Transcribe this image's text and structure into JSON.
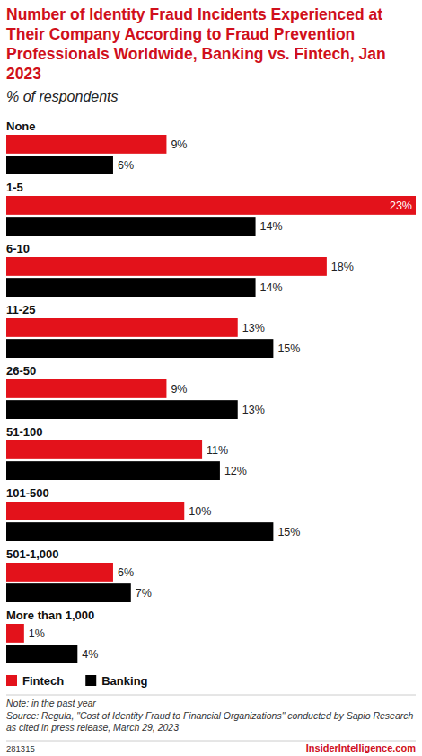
{
  "chart_data": {
    "type": "bar",
    "title": "Number of Identity Fraud Incidents Experienced at Their Company According to Fraud Prevention Professionals Worldwide, Banking vs. Fintech, Jan 2023",
    "subtitle": "% of respondents",
    "orientation": "horizontal",
    "categories": [
      "None",
      "1-5",
      "6-10",
      "11-25",
      "26-50",
      "51-100",
      "101-500",
      "501-1,000",
      "More than 1,000"
    ],
    "series": [
      {
        "name": "Fintech",
        "color": "#e3121b",
        "values": [
          9,
          23,
          18,
          13,
          9,
          11,
          10,
          6,
          1
        ],
        "value_labels": [
          "9%",
          "23%",
          "18%",
          "13%",
          "9%",
          "11%",
          "10%",
          "6%",
          "1%"
        ]
      },
      {
        "name": "Banking",
        "color": "#000000",
        "values": [
          6,
          14,
          14,
          15,
          13,
          12,
          15,
          7,
          4
        ],
        "value_labels": [
          "6%",
          "14%",
          "14%",
          "15%",
          "13%",
          "12%",
          "15%",
          "7%",
          "4%"
        ]
      }
    ],
    "xlim": [
      0,
      23
    ],
    "data_labels": true,
    "tick_labels": false,
    "legend": "bottom-left",
    "note": "Note: in the past year",
    "source": "Source: Regula, \"Cost of Identity Fraud to Financial Organizations\" conducted by Sapio Research as cited in press release, March 29, 2023",
    "chart_id": "281315",
    "credit": "InsiderIntelligence.com"
  }
}
